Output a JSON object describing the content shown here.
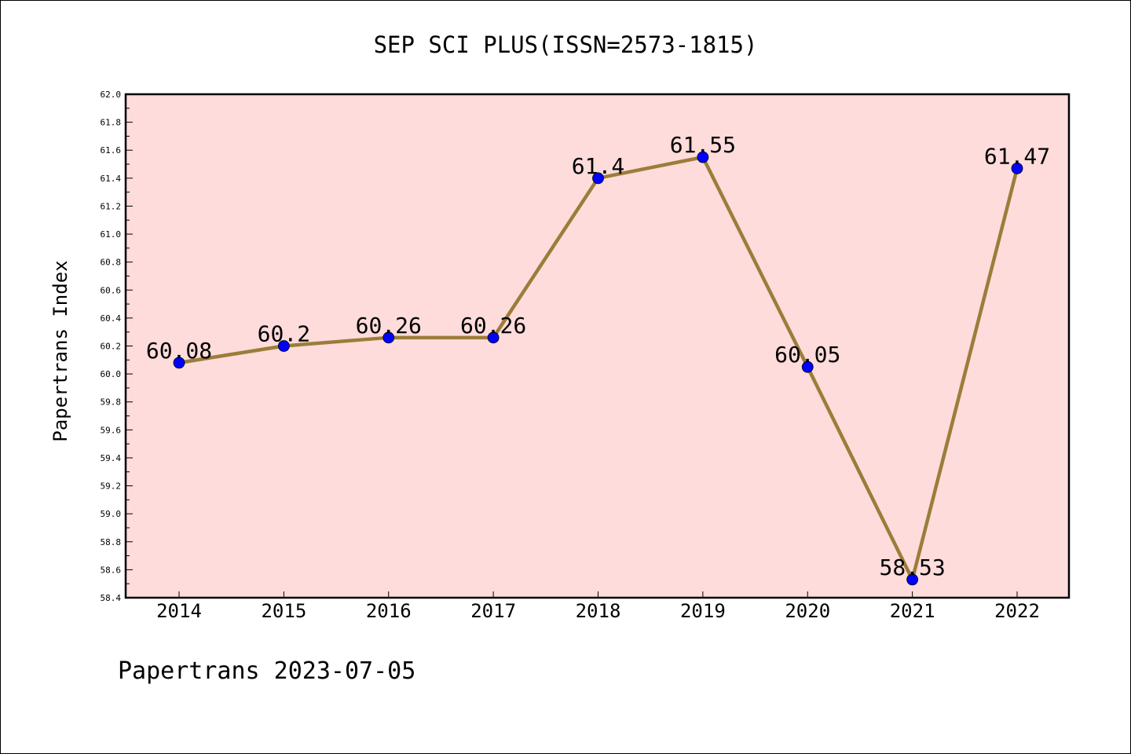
{
  "chart_data": {
    "type": "line",
    "title": "SEP SCI PLUS(ISSN=2573-1815)",
    "xlabel": "",
    "ylabel": "Papertrans Index",
    "categories": [
      "2014",
      "2015",
      "2016",
      "2017",
      "2018",
      "2019",
      "2020",
      "2021",
      "2022"
    ],
    "values": [
      60.08,
      60.2,
      60.26,
      60.26,
      61.4,
      61.55,
      60.05,
      58.53,
      61.47
    ],
    "data_labels": [
      "60.08",
      "60.2",
      "60.26",
      "60.26",
      "61.4",
      "61.55",
      "60.05",
      "58.53",
      "61.47"
    ],
    "ylim": [
      58.4,
      62.0
    ],
    "ytick_step": 0.2,
    "ytick_decimals": 1,
    "grid": false,
    "line_color": "#9b7d3a",
    "marker_color": "#0000ff",
    "plot_background": "#fddcdb"
  },
  "footer": "Papertrans 2023-07-05"
}
